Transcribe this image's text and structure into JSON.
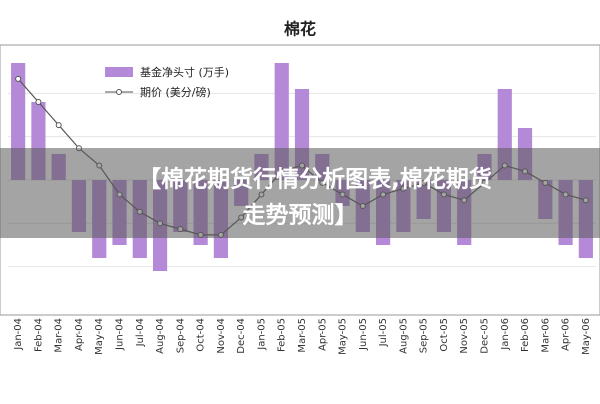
{
  "chart_data": {
    "type": "bar-line",
    "title": "棉花",
    "categories": [
      "Jan-04",
      "Feb-04",
      "Mar-04",
      "Apr-04",
      "May-04",
      "Jun-04",
      "Jul-04",
      "Aug-04",
      "Sep-04",
      "Oct-04",
      "Nov-04",
      "Dec-04",
      "Jan-05",
      "Feb-05",
      "Mar-05",
      "Apr-05",
      "May-05",
      "Jun-05",
      "Jul-05",
      "Aug-05",
      "Sep-05",
      "Oct-05",
      "Nov-05",
      "Dec-05",
      "Jan-06",
      "Feb-06",
      "Mar-06",
      "Apr-06",
      "May-06"
    ],
    "series": [
      {
        "name": "基金净头寸 (万手)",
        "color": "#b48ad8",
        "values": [
          4.5,
          3,
          1,
          -2,
          -3,
          -2.5,
          -3,
          -3.5,
          -2,
          -2.5,
          -3,
          -1,
          1,
          4.5,
          3.5,
          1,
          -1,
          -2,
          -2.5,
          -2,
          -1.5,
          -2,
          -2.5,
          1,
          3.5,
          2,
          -1.5,
          -2.5,
          -3
        ]
      },
      {
        "name": "期价 (美分/磅)",
        "color": "#555555",
        "axis": "y2",
        "values": [
          70,
          66,
          62,
          58,
          55,
          50,
          47,
          45,
          44,
          43,
          43,
          46,
          50,
          54,
          55,
          52,
          50,
          48,
          50,
          51,
          52,
          50,
          49,
          52,
          55,
          54,
          52,
          50,
          49
        ]
      }
    ],
    "ylim": [
      -5,
      5
    ],
    "y2lim": [
      30,
      75
    ],
    "grid": true
  },
  "banner": [
    "【棉花期货行情分析图表,棉花期货",
    "走势预测】"
  ]
}
